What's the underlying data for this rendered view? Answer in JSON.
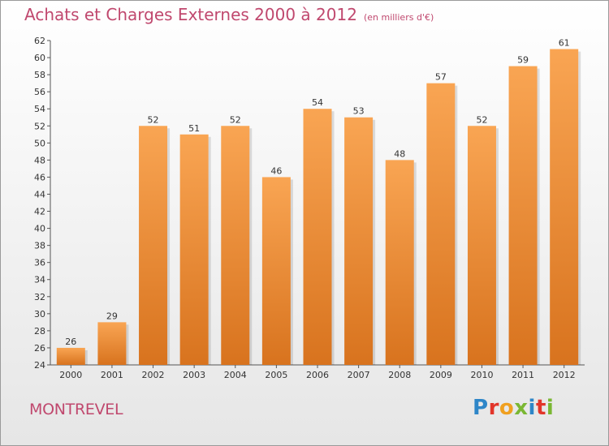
{
  "title": "Achats et Charges Externes 2000 à 2012",
  "unit": "(en milliers d'€)",
  "commune": "MONTREVEL",
  "logo": {
    "letters": [
      {
        "ch": "P",
        "color": "#2e86c8"
      },
      {
        "ch": "r",
        "color": "#e2352a"
      },
      {
        "ch": "o",
        "color": "#f0a020"
      },
      {
        "ch": "x",
        "color": "#7ab733"
      },
      {
        "ch": "i",
        "color": "#2e86c8"
      },
      {
        "ch": "t",
        "color": "#e2352a"
      },
      {
        "ch": "i",
        "color": "#7ab733"
      }
    ]
  },
  "colors": {
    "bar_top": "#f9a553",
    "bar_bottom": "#d8731e",
    "title": "#c0486e"
  },
  "chart_data": {
    "type": "bar",
    "categories": [
      "2000",
      "2001",
      "2002",
      "2003",
      "2004",
      "2005",
      "2006",
      "2007",
      "2008",
      "2009",
      "2010",
      "2011",
      "2012"
    ],
    "values": [
      26,
      29,
      52,
      51,
      52,
      46,
      54,
      53,
      48,
      57,
      52,
      59,
      61
    ],
    "ylim": [
      24,
      62
    ],
    "yticks": [
      24,
      26,
      28,
      30,
      32,
      34,
      36,
      38,
      40,
      42,
      44,
      46,
      48,
      50,
      52,
      54,
      56,
      58,
      60,
      62
    ],
    "grid": false
  }
}
